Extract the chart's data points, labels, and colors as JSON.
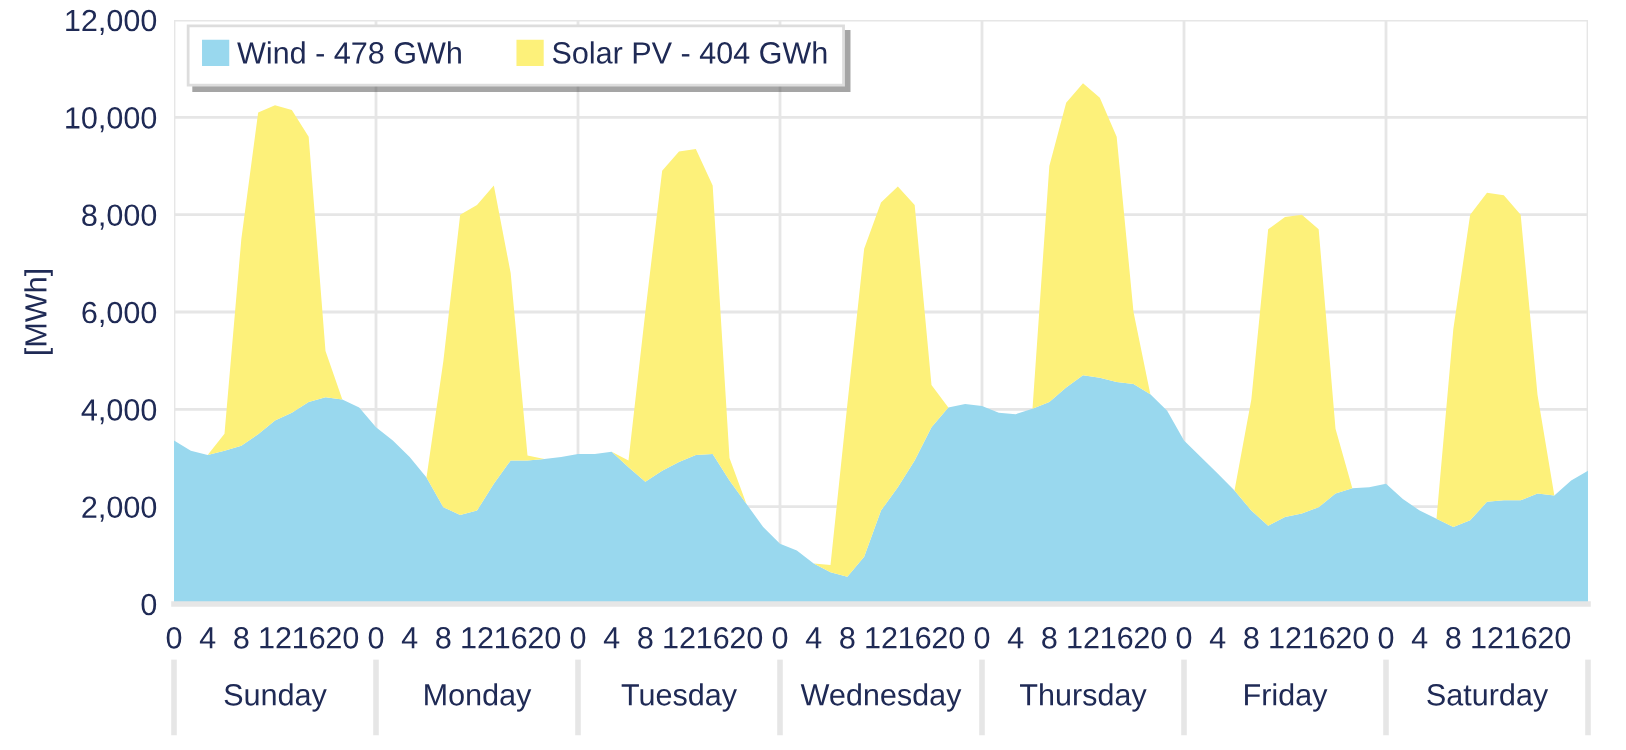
{
  "chart_data": {
    "type": "area",
    "stacked": true,
    "ylabel": "[MWh]",
    "categories": [
      "0",
      null,
      "4",
      null,
      "8",
      null,
      "12",
      null,
      "16",
      null,
      "20",
      null,
      "0",
      null,
      "4",
      null,
      "8",
      null,
      "12",
      null,
      "16",
      null,
      "20",
      null,
      "0",
      null,
      "4",
      null,
      "8",
      null,
      "12",
      null,
      "16",
      null,
      "20",
      null,
      "0",
      null,
      "4",
      null,
      "8",
      null,
      "12",
      null,
      "16",
      null,
      "20",
      null,
      "0",
      null,
      "4",
      null,
      "8",
      null,
      "12",
      null,
      "16",
      null,
      "20",
      null,
      "0",
      null,
      "4",
      null,
      "8",
      null,
      "12",
      null,
      "16",
      null,
      "20",
      null,
      "0",
      null,
      "4",
      null,
      "8",
      null,
      "12",
      null,
      "16",
      null,
      "20",
      null,
      null
    ],
    "series": [
      {
        "name": "Wind - 478 GWh",
        "color": "#99d8ee",
        "values": [
          3360,
          3150,
          3060,
          3150,
          3250,
          3490,
          3770,
          3930,
          4150,
          4250,
          4200,
          4040,
          3630,
          3360,
          3020,
          2600,
          1990,
          1830,
          1920,
          2470,
          2950,
          2950,
          2980,
          3020,
          3080,
          3080,
          3130,
          2810,
          2510,
          2740,
          2920,
          3060,
          3080,
          2540,
          2060,
          1580,
          1240,
          1100,
          830,
          650,
          560,
          970,
          1920,
          2400,
          2950,
          3630,
          4040,
          4110,
          4070,
          3930,
          3900,
          4010,
          4150,
          4450,
          4700,
          4650,
          4560,
          4520,
          4310,
          3970,
          3360,
          3020,
          2680,
          2330,
          1920,
          1610,
          1790,
          1860,
          1990,
          2270,
          2380,
          2400,
          2470,
          2160,
          1920,
          1750,
          1580,
          1720,
          2100,
          2130,
          2130,
          2270,
          2230,
          2540,
          2740
        ]
      },
      {
        "name": "Solar PV - 404 GWh",
        "color": "#fdf17a",
        "values": [
          0,
          0,
          0,
          350,
          4250,
          6610,
          6480,
          6220,
          5450,
          950,
          0,
          0,
          0,
          0,
          0,
          0,
          3000,
          6170,
          6280,
          6130,
          3850,
          100,
          0,
          0,
          0,
          0,
          0,
          140,
          3490,
          6160,
          6380,
          6290,
          5520,
          460,
          0,
          0,
          0,
          0,
          0,
          150,
          3540,
          6330,
          6330,
          6180,
          5250,
          870,
          0,
          0,
          0,
          0,
          0,
          0,
          4850,
          5850,
          6000,
          5750,
          5040,
          1480,
          0,
          0,
          0,
          0,
          0,
          0,
          2280,
          6090,
          6160,
          6140,
          5710,
          1330,
          0,
          0,
          0,
          0,
          0,
          0,
          4070,
          6280,
          6350,
          6270,
          5870,
          2030,
          0,
          0,
          0
        ]
      }
    ],
    "ylim": [
      0,
      12000
    ],
    "yticks": [
      0,
      {
        "value": 2000,
        "label": "2,000"
      },
      {
        "value": 4000,
        "label": "4,000"
      },
      {
        "value": 6000,
        "label": "6,000"
      },
      {
        "value": 8000,
        "label": "8,000"
      },
      {
        "value": 10000,
        "label": "10,000"
      },
      {
        "value": 12000,
        "label": "12,000"
      }
    ],
    "annotations": [
      "Sunday",
      "Monday",
      "Tuesday",
      "Wednesday",
      "Thursday",
      "Friday",
      "Saturday"
    ],
    "grid": true,
    "legend": "top left"
  }
}
